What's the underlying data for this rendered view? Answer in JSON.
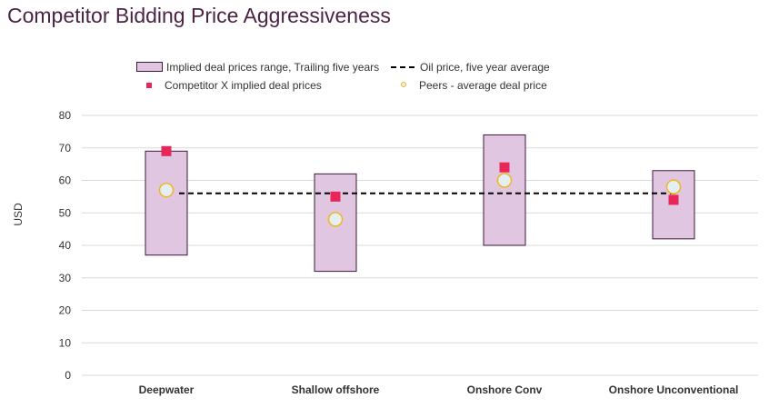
{
  "chart_data": {
    "type": "range-bar-with-markers",
    "title": "Competitor Bidding Price Aggressiveness",
    "xlabel": "",
    "ylabel": "USD",
    "ylim": [
      0,
      80
    ],
    "yticks": [
      0,
      10,
      20,
      30,
      40,
      50,
      60,
      70,
      80
    ],
    "categories": [
      "Deepwater",
      "Shallow offshore",
      "Onshore Conv",
      "Onshore Unconventional"
    ],
    "range": {
      "name": "Implied deal prices range, Trailing five years",
      "low": [
        37,
        32,
        40,
        42
      ],
      "high": [
        69,
        62,
        74,
        63
      ]
    },
    "competitor": {
      "name": "Competitor X implied deal prices",
      "values": [
        69,
        55,
        64,
        54
      ]
    },
    "peers": {
      "name": "Peers - average deal price",
      "values": [
        57,
        48,
        60,
        58
      ]
    },
    "oil_price": {
      "name": "Oil price, five year average",
      "value": 56
    },
    "colors": {
      "title": "#4b2344",
      "range_fill": "#e0c6e1",
      "range_stroke": "#3c1a3a",
      "competitor": "#e8265a",
      "peers_fill": "#e3eff2",
      "peers_stroke": "#f2b61d",
      "oil_line": "#000000",
      "grid": "#d9d9d9",
      "text": "#333333"
    }
  }
}
